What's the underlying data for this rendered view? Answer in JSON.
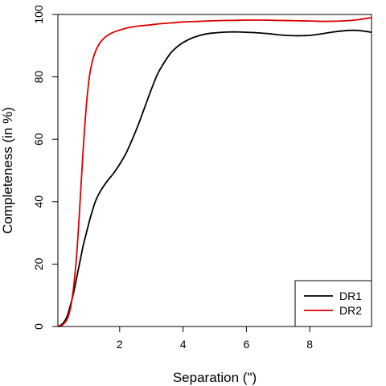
{
  "chart_data": {
    "type": "line",
    "xlabel": "Separation (\")",
    "ylabel": "Completeness (in %)",
    "xlim": [
      0.05,
      9.95
    ],
    "ylim": [
      0,
      100
    ],
    "xticks": [
      2,
      4,
      6,
      8
    ],
    "yticks": [
      0,
      20,
      40,
      60,
      80,
      100
    ],
    "grid": false,
    "legend": "bottom-right",
    "series": [
      {
        "name": "DR1",
        "color": "#000000",
        "x": [
          0.05,
          0.15,
          0.25,
          0.35,
          0.45,
          0.55,
          0.65,
          0.75,
          0.85,
          0.95,
          1.05,
          1.15,
          1.25,
          1.4,
          1.6,
          1.8,
          2.0,
          2.2,
          2.4,
          2.6,
          2.8,
          3.0,
          3.2,
          3.4,
          3.6,
          3.8,
          4.0,
          4.25,
          4.5,
          4.75,
          5.0,
          5.25,
          5.5,
          5.75,
          6.0,
          6.25,
          6.5,
          6.75,
          7.0,
          7.25,
          7.5,
          7.75,
          8.0,
          8.25,
          8.5,
          8.75,
          9.0,
          9.25,
          9.5,
          9.75,
          9.95
        ],
        "y": [
          0,
          0.5,
          1.5,
          3.5,
          7,
          11,
          16,
          21,
          26,
          30,
          34,
          37.5,
          40.5,
          43.5,
          46.5,
          49,
          52,
          55.5,
          60,
          65,
          70.5,
          76,
          81,
          84.5,
          87.5,
          89.5,
          91,
          92.3,
          93.2,
          93.8,
          94.1,
          94.3,
          94.4,
          94.4,
          94.3,
          94.2,
          94,
          93.8,
          93.5,
          93.3,
          93.2,
          93.2,
          93.3,
          93.6,
          94,
          94.4,
          94.7,
          94.9,
          94.9,
          94.6,
          94.3
        ]
      },
      {
        "name": "DR2",
        "color": "#dd0000",
        "x": [
          0.05,
          0.15,
          0.25,
          0.35,
          0.45,
          0.55,
          0.65,
          0.75,
          0.85,
          0.95,
          1.05,
          1.15,
          1.25,
          1.35,
          1.45,
          1.55,
          1.7,
          1.85,
          2.0,
          2.2,
          2.4,
          2.6,
          2.8,
          3.0,
          3.25,
          3.5,
          3.75,
          4.0,
          4.5,
          5.0,
          5.5,
          6.0,
          6.5,
          7.0,
          7.5,
          8.0,
          8.5,
          9.0,
          9.5,
          9.95
        ],
        "y": [
          0,
          0.2,
          1,
          2.5,
          6,
          13,
          24,
          40,
          57,
          71,
          80.5,
          85.5,
          88.5,
          90.5,
          91.8,
          92.8,
          93.8,
          94.5,
          95,
          95.6,
          96,
          96.3,
          96.5,
          96.7,
          97,
          97.2,
          97.4,
          97.6,
          97.8,
          98,
          98.1,
          98.2,
          98.2,
          98.1,
          98,
          97.9,
          97.8,
          97.9,
          98.3,
          99
        ]
      }
    ]
  }
}
